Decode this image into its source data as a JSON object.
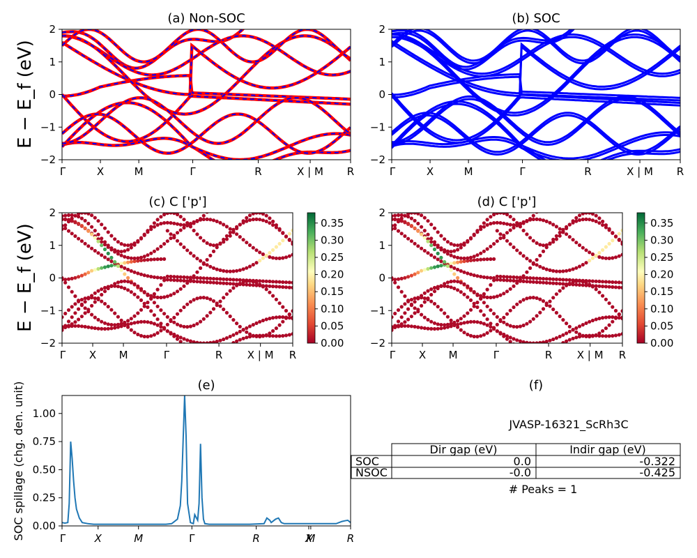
{
  "figure": {
    "ylabel_band": "E − E_f (eV)",
    "ylabel_spill": "SOC spillage (chg. den. unit)"
  },
  "chart_data": [
    {
      "panel": "a",
      "type": "line",
      "title": "(a) Non-SOC",
      "xticks": [
        "Γ",
        "X",
        "M",
        "Γ",
        "R",
        "X | M",
        "R"
      ],
      "ylim": [
        -2,
        2
      ],
      "yticks": [
        "2",
        "1",
        "0",
        "−1",
        "−2"
      ],
      "colors": {
        "primary": "#ff0000",
        "overlay": "#0000ff"
      }
    },
    {
      "panel": "b",
      "type": "line",
      "title": "(b) SOC",
      "xticks": [
        "Γ",
        "X",
        "M",
        "Γ",
        "R",
        "X | M",
        "R"
      ],
      "ylim": [
        -2,
        2
      ],
      "yticks": [
        "2",
        "1",
        "0",
        "−1",
        "−2"
      ],
      "colors": {
        "primary": "#0000ff"
      }
    },
    {
      "panel": "c",
      "type": "scatter",
      "title": "(c)  C ['p']",
      "xticks": [
        "Γ",
        "X",
        "M",
        "Γ",
        "R",
        "X | M",
        "R"
      ],
      "ylim": [
        -2,
        2
      ],
      "yticks": [
        "2",
        "1",
        "0",
        "−1",
        "−2"
      ],
      "colorbar": {
        "ticks": [
          "0.35",
          "0.30",
          "0.25",
          "0.20",
          "0.15",
          "0.10",
          "0.05",
          "0.00"
        ],
        "range": [
          0,
          0.38
        ],
        "colormap": "RdYlGn"
      }
    },
    {
      "panel": "d",
      "type": "scatter",
      "title": "(d) C ['p']",
      "xticks": [
        "Γ",
        "X",
        "M",
        "Γ",
        "R",
        "X | M",
        "R"
      ],
      "ylim": [
        -2,
        2
      ],
      "yticks": [
        "2",
        "1",
        "0",
        "−1",
        "−2"
      ],
      "colorbar": {
        "ticks": [
          "0.35",
          "0.30",
          "0.25",
          "0.20",
          "0.15",
          "0.10",
          "0.05",
          "0.00"
        ],
        "range": [
          0,
          0.38
        ],
        "colormap": "RdYlGn"
      }
    },
    {
      "panel": "e",
      "type": "line",
      "title": "(e)",
      "xticks": [
        "Γ",
        "X",
        "M",
        "Γ",
        "R",
        "X",
        "M",
        "R"
      ],
      "ylim": [
        0,
        1.16
      ],
      "yticks": [
        "1.00",
        "0.75",
        "0.50",
        "0.25",
        "0.00"
      ],
      "series_color": "#1f77b4",
      "x": [
        0.0,
        0.01,
        0.02,
        0.025,
        0.03,
        0.035,
        0.04,
        0.045,
        0.05,
        0.06,
        0.07,
        0.09,
        0.11,
        0.15,
        0.2,
        0.3,
        0.36,
        0.38,
        0.4,
        0.41,
        0.415,
        0.425,
        0.43,
        0.435,
        0.445,
        0.455,
        0.46,
        0.47,
        0.475,
        0.48,
        0.485,
        0.49,
        0.495,
        0.51,
        0.55,
        0.6,
        0.65,
        0.7,
        0.71,
        0.72,
        0.725,
        0.73,
        0.74,
        0.75,
        0.76,
        0.77,
        0.8,
        0.85,
        0.9,
        0.95,
        0.97,
        0.98,
        0.99,
        1.0
      ],
      "values": [
        0.03,
        0.025,
        0.03,
        0.2,
        0.75,
        0.6,
        0.4,
        0.25,
        0.15,
        0.07,
        0.03,
        0.02,
        0.015,
        0.015,
        0.015,
        0.015,
        0.015,
        0.02,
        0.06,
        0.18,
        0.4,
        1.16,
        0.8,
        0.2,
        0.03,
        0.02,
        0.1,
        0.05,
        0.2,
        0.73,
        0.25,
        0.06,
        0.02,
        0.015,
        0.015,
        0.015,
        0.015,
        0.02,
        0.07,
        0.05,
        0.03,
        0.04,
        0.06,
        0.07,
        0.03,
        0.02,
        0.02,
        0.02,
        0.02,
        0.02,
        0.04,
        0.045,
        0.05,
        0.03
      ]
    },
    {
      "panel": "f",
      "type": "table",
      "title": "(f)",
      "caption": "JVASP-16321_ScRh3C",
      "columns": [
        "Dir gap (eV)",
        "Indir gap (eV)"
      ],
      "rows": [
        {
          "label": "SOC",
          "cells": [
            "0.0",
            "-0.322"
          ]
        },
        {
          "label": "NSOC",
          "cells": [
            "-0.0",
            "-0.425"
          ]
        }
      ],
      "note": "# Peaks = 1"
    }
  ]
}
